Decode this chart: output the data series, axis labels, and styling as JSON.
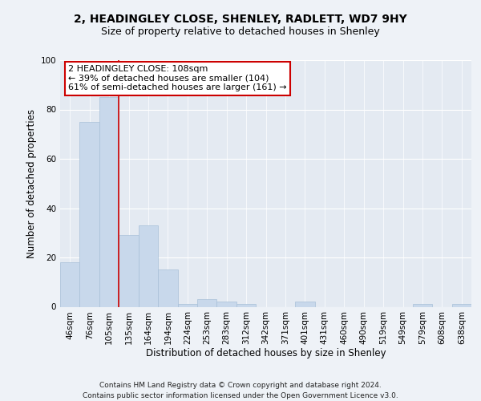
{
  "title1": "2, HEADINGLEY CLOSE, SHENLEY, RADLETT, WD7 9HY",
  "title2": "Size of property relative to detached houses in Shenley",
  "xlabel": "Distribution of detached houses by size in Shenley",
  "ylabel": "Number of detached properties",
  "footer1": "Contains HM Land Registry data © Crown copyright and database right 2024.",
  "footer2": "Contains public sector information licensed under the Open Government Licence v3.0.",
  "categories": [
    "46sqm",
    "76sqm",
    "105sqm",
    "135sqm",
    "164sqm",
    "194sqm",
    "224sqm",
    "253sqm",
    "283sqm",
    "312sqm",
    "342sqm",
    "371sqm",
    "401sqm",
    "431sqm",
    "460sqm",
    "490sqm",
    "519sqm",
    "549sqm",
    "579sqm",
    "608sqm",
    "638sqm"
  ],
  "values": [
    18,
    75,
    85,
    29,
    33,
    15,
    1,
    3,
    2,
    1,
    0,
    0,
    2,
    0,
    0,
    0,
    0,
    0,
    1,
    0,
    1
  ],
  "bar_color": "#c8d8eb",
  "bar_edge_color": "#a8c0d8",
  "vline_x_index": 2,
  "vline_color": "#cc0000",
  "annotation_text": "2 HEADINGLEY CLOSE: 108sqm\n← 39% of detached houses are smaller (104)\n61% of semi-detached houses are larger (161) →",
  "annotation_box_facecolor": "white",
  "annotation_box_edgecolor": "#cc0000",
  "ylim": [
    0,
    100
  ],
  "background_color": "#eef2f7",
  "plot_bg_color": "#e4eaf2",
  "grid_color": "white",
  "title1_fontsize": 10,
  "title2_fontsize": 9,
  "xlabel_fontsize": 8.5,
  "ylabel_fontsize": 8.5,
  "tick_fontsize": 7.5,
  "annotation_fontsize": 8,
  "footer_fontsize": 6.5
}
